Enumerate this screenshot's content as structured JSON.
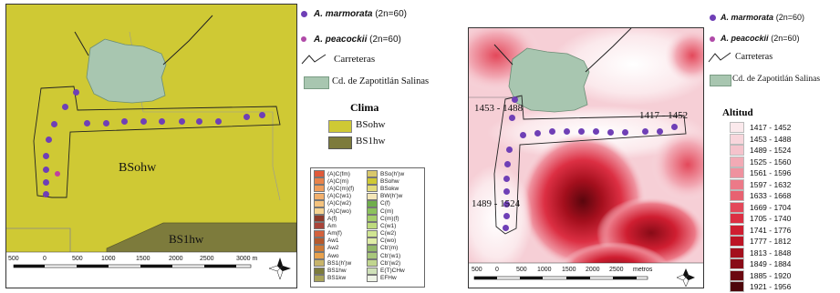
{
  "left_map": {
    "region_labels": {
      "main": "BSohw",
      "lower": "BS1hw"
    },
    "climate_title": "Clima",
    "climate_legend": [
      {
        "label": "BSohw",
        "color": "#cfc934"
      },
      {
        "label": "BS1hw",
        "color": "#7d7b3c"
      }
    ],
    "scale_labels": [
      "500",
      "0",
      "500",
      "1000",
      "1500",
      "2000",
      "2500",
      "3000 m"
    ],
    "small_legend_left": [
      {
        "label": "(A)C(fm)",
        "color": "#e05a3a"
      },
      {
        "label": "(A)C(m)",
        "color": "#e8834a"
      },
      {
        "label": "(A)C(m)(f)",
        "color": "#ef9d5b"
      },
      {
        "label": "(A)C(w1)",
        "color": "#f2b06d"
      },
      {
        "label": "(A)C(w2)",
        "color": "#f5c37e"
      },
      {
        "label": "(A)C(wo)",
        "color": "#f7d492"
      },
      {
        "label": "A(f)",
        "color": "#8e3a2a"
      },
      {
        "label": "Am",
        "color": "#a9453a"
      },
      {
        "label": "Am(f)",
        "color": "#d4623d"
      },
      {
        "label": "Aw1",
        "color": "#b65a2c"
      },
      {
        "label": "Aw2",
        "color": "#cf7a36"
      },
      {
        "label": "Awo",
        "color": "#e8a24e"
      },
      {
        "label": "BS1(h')w",
        "color": "#c8b46a"
      },
      {
        "label": "BS1hw",
        "color": "#7d7b3c"
      },
      {
        "label": "BS1kw",
        "color": "#a9a35a"
      }
    ],
    "small_legend_right": [
      {
        "label": "BSo(h')w",
        "color": "#d9c86b"
      },
      {
        "label": "BSohw",
        "color": "#cfc934"
      },
      {
        "label": "BSokw",
        "color": "#e2db7b"
      },
      {
        "label": "BW(h')w",
        "color": "#f4e7b8"
      },
      {
        "label": "C(f)",
        "color": "#6fae4c"
      },
      {
        "label": "C(m)",
        "color": "#8cc25d"
      },
      {
        "label": "C(m)(f)",
        "color": "#a6cf6c"
      },
      {
        "label": "C(w1)",
        "color": "#bedb7e"
      },
      {
        "label": "C(w2)",
        "color": "#d0e592"
      },
      {
        "label": "C(wo)",
        "color": "#e0eda7"
      },
      {
        "label": "Cb'(m)",
        "color": "#93b86a"
      },
      {
        "label": "Cb'(w1)",
        "color": "#a9c77c"
      },
      {
        "label": "Cb'(w2)",
        "color": "#c1d68f"
      },
      {
        "label": "E(T)CHw",
        "color": "#cfe1b8"
      },
      {
        "label": "EFHw",
        "color": "#eef3e6"
      }
    ]
  },
  "legend_left": {
    "species1": "A. marmorata",
    "species1_n": "(2n=60)",
    "species2": "A. peacockii",
    "species2_n": "(2n=60)",
    "roads": "Carreteras",
    "city": "Cd. de Zapotitlán Salinas"
  },
  "right_map": {
    "labels": {
      "a": "1453 - 1488",
      "b": "1417 - 1452",
      "c": "1489 - 1524"
    },
    "scale_labels": [
      "500",
      "0",
      "500",
      "1000",
      "1500",
      "2000",
      "2500",
      "metros"
    ],
    "legend": {
      "species1": "A. marmorata",
      "species1_n": "(2n=60)",
      "species2": "A. peacockii",
      "species2_n": "(2n=60)",
      "roads": "Carreteras",
      "city": "Cd. de Zapotitlán Salinas",
      "altitude_title": "Altitud",
      "altitude_classes": [
        {
          "label": "1417 - 1452",
          "color": "#fbe9ec"
        },
        {
          "label": "1453 - 1488",
          "color": "#f8d6dc"
        },
        {
          "label": "1489 - 1524",
          "color": "#f5c3cc"
        },
        {
          "label": "1525 - 1560",
          "color": "#f2aab5"
        },
        {
          "label": "1561 - 1596",
          "color": "#ef929f"
        },
        {
          "label": "1597 - 1632",
          "color": "#ec7a88"
        },
        {
          "label": "1633 - 1668",
          "color": "#e86271"
        },
        {
          "label": "1669 - 1704",
          "color": "#e3485a"
        },
        {
          "label": "1705 - 1740",
          "color": "#dc2f43"
        },
        {
          "label": "1741 - 1776",
          "color": "#cf1e31"
        },
        {
          "label": "1777 - 1812",
          "color": "#bd1425"
        },
        {
          "label": "1813 - 1848",
          "color": "#a40f1d"
        },
        {
          "label": "1849 - 1884",
          "color": "#880b17"
        },
        {
          "label": "1885 - 1920",
          "color": "#6b0811"
        },
        {
          "label": "1921 - 1956",
          "color": "#4d050b"
        }
      ]
    }
  },
  "colors": {
    "bsohw": "#cfc934",
    "bs1hw": "#7d7b3c",
    "city": "#a8c6b0",
    "dot": "#6f3fb6",
    "pink_dot": "#c040a0"
  }
}
